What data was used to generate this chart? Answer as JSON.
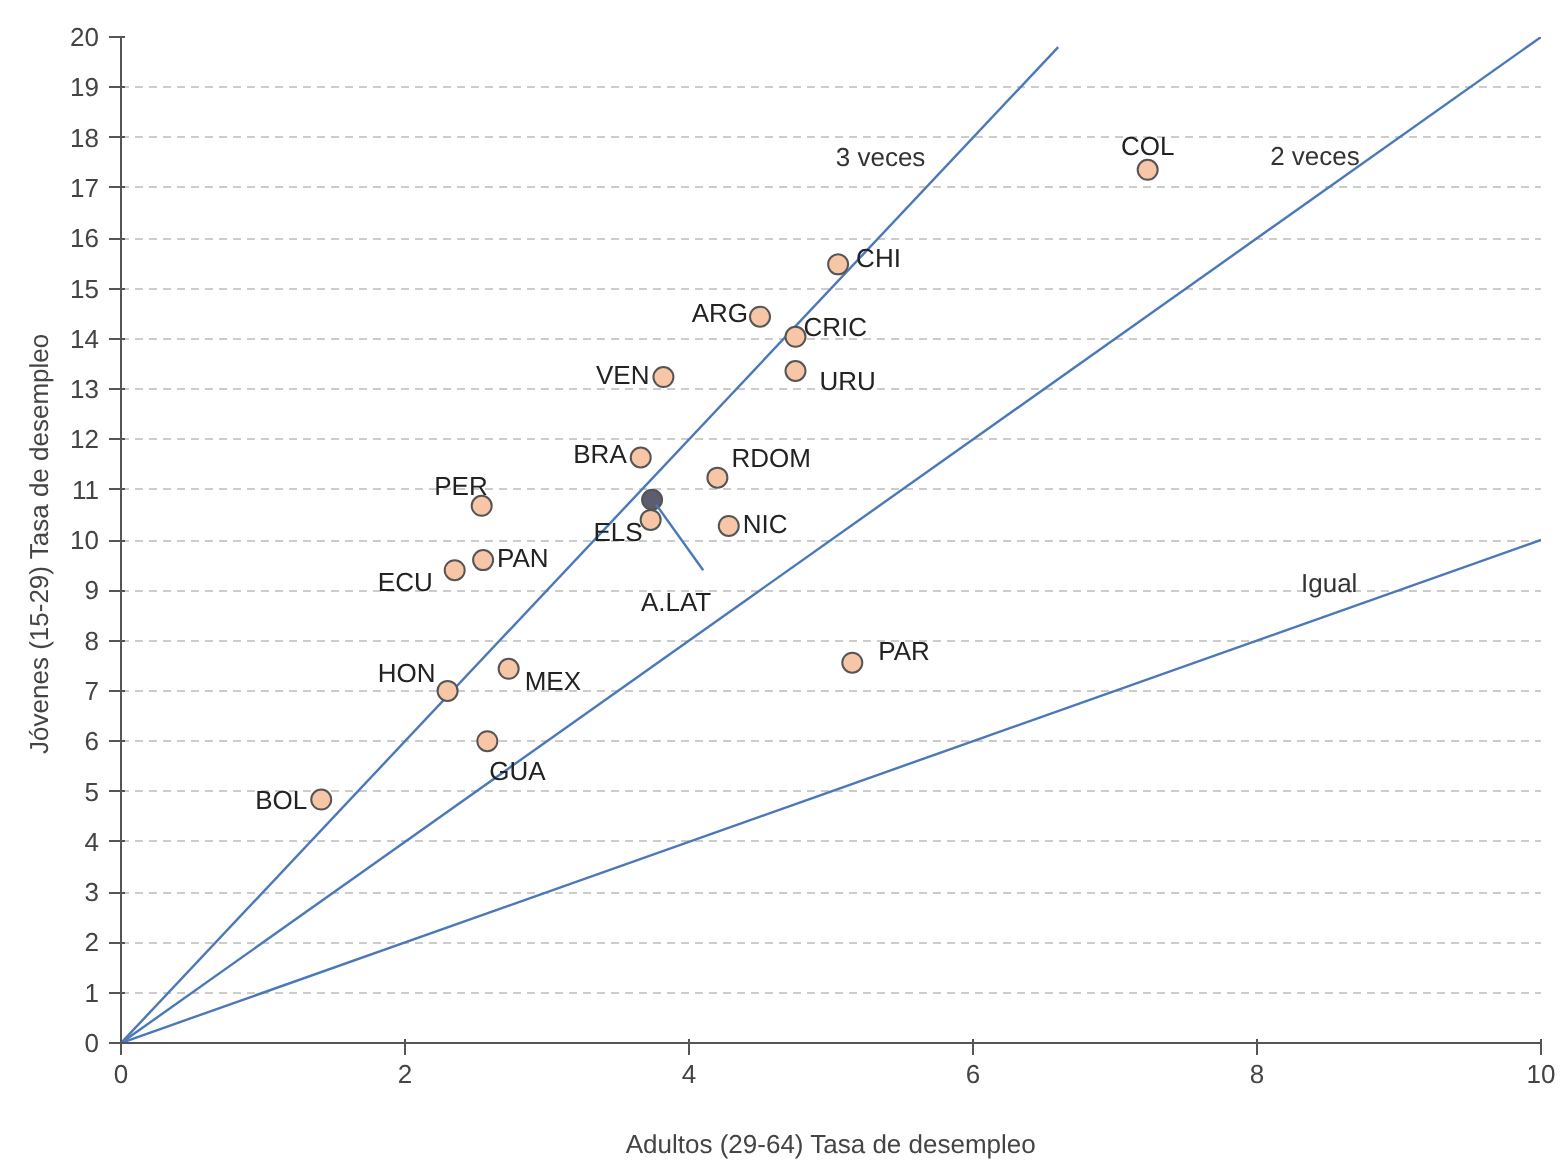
{
  "chart_data": {
    "type": "scatter",
    "xlabel": "Adultos (29-64) Tasa de desempleo",
    "ylabel": "Jóvenes  (15-29) Tasa de desempleo",
    "xlim": [
      0,
      10
    ],
    "ylim": [
      0,
      20
    ],
    "xticks": [
      0,
      2,
      4,
      6,
      8,
      10
    ],
    "yticks": [
      0,
      1,
      2,
      3,
      4,
      5,
      6,
      7,
      8,
      9,
      10,
      11,
      12,
      13,
      14,
      15,
      16,
      17,
      18,
      19,
      20
    ],
    "grid": "y",
    "marker": "circle",
    "series": [
      {
        "type": "line",
        "marker": "none",
        "name": "3 veces",
        "color": "#4a78b8",
        "x": [
          0,
          6.6
        ],
        "values": [
          0,
          19.8
        ]
      },
      {
        "type": "line",
        "marker": "none",
        "name": "2 veces",
        "color": "#4a78b8",
        "x": [
          0,
          10
        ],
        "values": [
          0,
          20
        ]
      },
      {
        "type": "line",
        "marker": "none",
        "name": "Igual",
        "color": "#4a78b8",
        "x": [
          0,
          10
        ],
        "values": [
          0,
          10
        ]
      },
      {
        "x": [
          7.23,
          5.05,
          4.5,
          4.75,
          4.75,
          3.82,
          3.66,
          4.2,
          3.74,
          3.73,
          4.28,
          2.54,
          2.55,
          2.35,
          5.15,
          2.73,
          2.3,
          2.58,
          1.41
        ],
        "values": [
          17.36,
          15.48,
          14.44,
          14.04,
          13.36,
          13.24,
          11.64,
          11.24,
          10.8,
          10.4,
          10.28,
          10.68,
          9.6,
          9.4,
          7.56,
          7.44,
          7.0,
          6.0,
          4.84
        ],
        "colors": [
          "#f7c6a6",
          "#f7c6a6",
          "#f7c6a6",
          "#f7c6a6",
          "#f7c6a6",
          "#f7c6a6",
          "#f7c6a6",
          "#f7c6a6",
          "#5d5d70",
          "#f7c6a6",
          "#f7c6a6",
          "#f7c6a6",
          "#f7c6a6",
          "#f7c6a6",
          "#f7c6a6",
          "#f7c6a6",
          "#f7c6a6",
          "#f7c6a6",
          "#f7c6a6"
        ]
      }
    ],
    "annotations": [
      {
        "text": "COL",
        "x": 7.23,
        "y": 17.36
      },
      {
        "text": "CHI",
        "x": 5.05,
        "y": 15.48
      },
      {
        "text": "ARG",
        "x": 4.5,
        "y": 14.44
      },
      {
        "text": "CRIC",
        "x": 4.75,
        "y": 14.04
      },
      {
        "text": "URU",
        "x": 4.75,
        "y": 13.36
      },
      {
        "text": "VEN",
        "x": 3.82,
        "y": 13.24
      },
      {
        "text": "BRA",
        "x": 3.66,
        "y": 11.64
      },
      {
        "text": "RDOM",
        "x": 4.2,
        "y": 11.24
      },
      {
        "text": "A.LAT",
        "x": 3.74,
        "y": 10.8
      },
      {
        "text": "ELS",
        "x": 3.73,
        "y": 10.4
      },
      {
        "text": "NIC",
        "x": 4.28,
        "y": 10.28
      },
      {
        "text": "PER",
        "x": 2.54,
        "y": 10.68
      },
      {
        "text": "PAN",
        "x": 2.55,
        "y": 9.6
      },
      {
        "text": "ECU",
        "x": 2.35,
        "y": 9.4
      },
      {
        "text": "PAR",
        "x": 5.15,
        "y": 7.56
      },
      {
        "text": "MEX",
        "x": 2.73,
        "y": 7.44
      },
      {
        "text": "HON",
        "x": 2.3,
        "y": 7.0
      },
      {
        "text": "GUA",
        "x": 2.58,
        "y": 6.0
      },
      {
        "text": "BOL",
        "x": 1.41,
        "y": 4.84
      }
    ]
  }
}
